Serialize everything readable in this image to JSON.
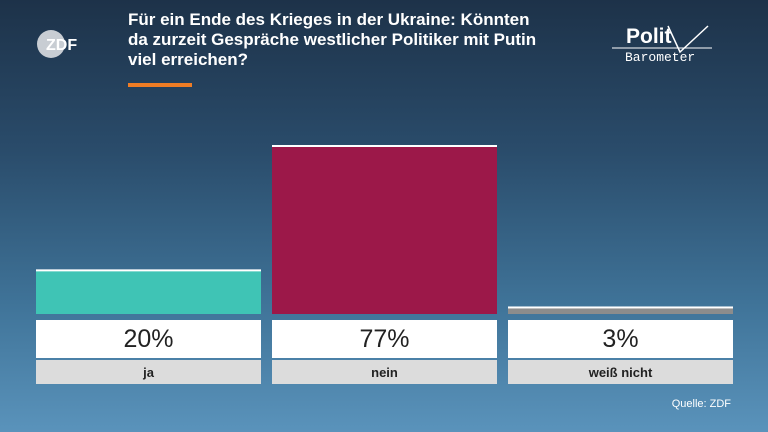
{
  "header": {
    "title_lines": [
      "Für ein Ende des Krieges in der Ukraine: Könnten",
      "da zurzeit Gespräche westlicher Politiker mit Putin",
      "viel erreichen?"
    ],
    "broadcaster_logo": "ZDF",
    "brand_logo_top": "Polit",
    "brand_logo_bottom": "Barometer",
    "accent_color": "#ef7d25"
  },
  "chart_data": {
    "type": "bar",
    "title": "Für ein Ende des Krieges in der Ukraine: Könnten da zurzeit Gespräche westlicher Politiker mit Putin viel erreichen?",
    "categories": [
      "ja",
      "nein",
      "weiß nicht"
    ],
    "values": [
      20,
      77,
      3
    ],
    "value_labels": [
      "20%",
      "77%",
      "3%"
    ],
    "colors": [
      "#3fc4b5",
      "#9c1849",
      "#8c8c8c"
    ],
    "ylim": [
      0,
      77
    ],
    "grid": false,
    "legend": "none"
  },
  "footer": {
    "source": "Quelle: ZDF"
  }
}
